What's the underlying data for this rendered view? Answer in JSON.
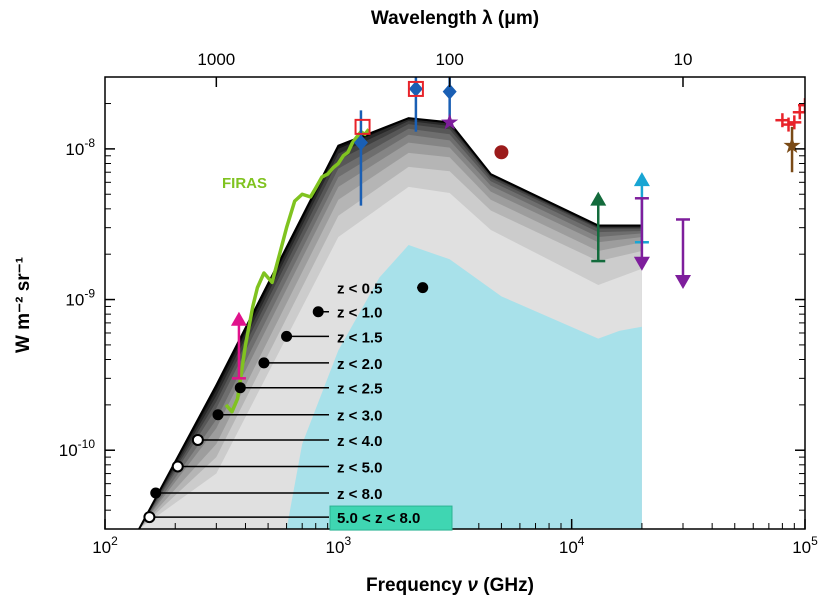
{
  "chart_data": {
    "type": "area",
    "title": "",
    "xlabel": "Frequency ν (GHz)",
    "xlabel_prefix": "Frequency ",
    "xlabel_symbol": "ν",
    "xlabel_suffix": " (GHz)",
    "ylabel": "W m⁻² sr⁻¹",
    "top_axis_label": "Wavelength λ (μm)",
    "xscale": "log",
    "yscale": "log",
    "xlim": [
      100,
      100000
    ],
    "ylim": [
      3e-11,
      3e-08
    ],
    "x_ticks": [
      {
        "value": 100,
        "base": "10",
        "exp": "2"
      },
      {
        "value": 1000,
        "base": "10",
        "exp": "3"
      },
      {
        "value": 10000,
        "base": "10",
        "exp": "4"
      },
      {
        "value": 100000,
        "base": "10",
        "exp": "5"
      }
    ],
    "y_ticks": [
      {
        "value": 1e-10,
        "base": "10",
        "exp": "-10"
      },
      {
        "value": 1e-09,
        "base": "10",
        "exp": "-9"
      },
      {
        "value": 1e-08,
        "base": "10",
        "exp": "-8"
      }
    ],
    "top_ticks": [
      {
        "label": "1000",
        "freq_ghz": 300
      },
      {
        "label": "100",
        "freq_ghz": 3000
      },
      {
        "label": "10",
        "freq_ghz": 30000
      }
    ],
    "envelope_x": [
      140,
      300,
      1000,
      2000,
      3000,
      4500,
      13000,
      20000
    ],
    "redshift_bins": [
      {
        "label": "z < 0.5",
        "color": "#e0e0e0",
        "marker_x": 2300,
        "marker_y": 1.2e-09,
        "filled": true,
        "y": [
          3e-11,
          7e-11,
          2.6e-09,
          5.6e-09,
          5.1e-09,
          2.9e-09,
          1.25e-09,
          1.6e-09
        ]
      },
      {
        "label": "z < 1.0",
        "color": "#cccccc",
        "marker_x": 820,
        "marker_y": 8.3e-10,
        "filled": true,
        "y": [
          3e-11,
          9e-11,
          3.6e-09,
          7.6e-09,
          7.1e-09,
          3.9e-09,
          1.8e-09,
          2.1e-09
        ]
      },
      {
        "label": "z < 1.5",
        "color": "#b5b5b5",
        "marker_x": 600,
        "marker_y": 5.7e-10,
        "filled": true,
        "y": [
          3e-11,
          1.1e-10,
          4.6e-09,
          9.4e-09,
          8.8e-09,
          4.6e-09,
          2.1e-09,
          2.4e-09
        ]
      },
      {
        "label": "z < 2.0",
        "color": "#9d9d9d",
        "marker_x": 480,
        "marker_y": 3.8e-10,
        "filled": true,
        "y": [
          3e-11,
          1.4e-10,
          5.6e-09,
          1.1e-08,
          1.02e-08,
          5.2e-09,
          2.4e-09,
          2.6e-09
        ]
      },
      {
        "label": "z < 2.5",
        "color": "#858585",
        "marker_x": 380,
        "marker_y": 2.6e-10,
        "filled": true,
        "y": [
          3e-11,
          1.6e-10,
          6.5e-09,
          1.24e-08,
          1.14e-08,
          5.7e-09,
          2.6e-09,
          2.75e-09
        ]
      },
      {
        "label": "z < 3.0",
        "color": "#6e6e6e",
        "marker_x": 305,
        "marker_y": 1.72e-10,
        "filled": true,
        "y": [
          3e-11,
          1.9e-10,
          7.4e-09,
          1.36e-08,
          1.25e-08,
          6.1e-09,
          2.8e-09,
          2.85e-09
        ]
      },
      {
        "label": "z < 4.0",
        "color": "#575757",
        "marker_x": 250,
        "marker_y": 1.17e-10,
        "filled": false,
        "y": [
          3e-11,
          2.1e-10,
          8.4e-09,
          1.46e-08,
          1.35e-08,
          6.4e-09,
          2.95e-09,
          2.95e-09
        ]
      },
      {
        "label": "z < 5.0",
        "color": "#404040",
        "marker_x": 205,
        "marker_y": 7.8e-11,
        "filled": false,
        "y": [
          3e-11,
          2.3e-10,
          9.3e-09,
          1.53e-08,
          1.42e-08,
          6.6e-09,
          3e-09,
          3e-09
        ]
      },
      {
        "label": "z < 8.0",
        "color": "#282828",
        "marker_x": 165,
        "marker_y": 5.2e-11,
        "filled": true,
        "y": [
          3e-11,
          2.5e-10,
          1e-08,
          1.58e-08,
          1.47e-08,
          6.7e-09,
          3.05e-09,
          3.05e-09
        ]
      },
      {
        "label": "5.0 < z < 8.0",
        "color": "#101010",
        "marker_x": 155,
        "marker_y": 3.6e-11,
        "filled": false,
        "highlight": "#3fd6b2",
        "y": [
          3e-11,
          2.7e-10,
          1.05e-08,
          1.6e-08,
          1.5e-08,
          6.8e-09,
          3.1e-09,
          3.1e-09
        ]
      }
    ],
    "cyan_region": {
      "color": "#a8e1ea",
      "x": [
        600,
        700,
        1000,
        1500,
        2000,
        3000,
        5000,
        13000,
        16000,
        20000
      ],
      "y": [
        3e-11,
        1.1e-10,
        4.6e-10,
        1.4e-09,
        2.3e-09,
        1.85e-09,
        1.05e-09,
        5.5e-10,
        6.2e-10,
        6.6e-10
      ]
    },
    "firas": {
      "label": "FIRAS",
      "color": "#80c320",
      "x": [
        330,
        350,
        370,
        400,
        430,
        450,
        480,
        520,
        560,
        600,
        650,
        700,
        760,
        800,
        850,
        900,
        950,
        1000,
        1050,
        1100,
        1150,
        1200,
        1250,
        1300,
        1350
      ],
      "y": [
        2e-10,
        1.8e-10,
        2.2e-10,
        5e-10,
        9e-10,
        1.2e-09,
        1.5e-09,
        1.3e-09,
        2e-09,
        3e-09,
        4.5e-09,
        5e-09,
        4.8e-09,
        5.5e-09,
        6.5e-09,
        6.8e-09,
        7.5e-09,
        8e-09,
        9e-09,
        9.5e-09,
        1.1e-08,
        1.2e-08,
        1.3e-08,
        1.25e-08,
        1.35e-08
      ]
    },
    "measurements": [
      {
        "name": "magenta-lower-limit",
        "x": 375,
        "y": 3e-10,
        "y_top": 7.8e-10,
        "color": "#e0138c",
        "kind": "arrow-up"
      },
      {
        "name": "blue-diamond-1",
        "x": 1250,
        "y": 1.1e-08,
        "y_low": 4.2e-09,
        "y_high": 1.8e-08,
        "color": "#1a5fb4",
        "kind": "diamond"
      },
      {
        "name": "red-square-1",
        "x": 1270,
        "y": 1.4e-08,
        "color": "#e8232a",
        "kind": "open-square"
      },
      {
        "name": "blue-diamond-2",
        "x": 2150,
        "y": 2.5e-08,
        "y_low": 1.3e-08,
        "y_high": 3.2e-08,
        "color": "#1a5fb4",
        "kind": "diamond"
      },
      {
        "name": "red-square-2",
        "x": 2150,
        "y": 2.5e-08,
        "color": "#e8232a",
        "kind": "open-square"
      },
      {
        "name": "blue-diamond-3",
        "x": 3000,
        "y": 2.4e-08,
        "y_low": 1.5e-08,
        "y_high": 3.1e-08,
        "color": "#1a5fb4",
        "kind": "diamond"
      },
      {
        "name": "purple-star",
        "x": 3000,
        "y": 1.5e-08,
        "color": "#7e1e9c",
        "kind": "star"
      },
      {
        "name": "darkred-circle",
        "x": 5000,
        "y": 9.5e-09,
        "color": "#9b1b1b",
        "kind": "circle"
      },
      {
        "name": "darkgreen-lower-limit",
        "x": 13000,
        "y": 1.8e-09,
        "y_top": 4.9e-09,
        "color": "#136b3c",
        "kind": "arrow-up"
      },
      {
        "name": "cyan-lower-limit",
        "x": 20000,
        "y": 2.4e-09,
        "y_top": 6.6e-09,
        "color": "#18a5d3",
        "kind": "arrow-up"
      },
      {
        "name": "purple-upper-limit-1",
        "x": 20000,
        "y": 4.7e-09,
        "y_bottom": 1.65e-09,
        "color": "#7e1e9c",
        "kind": "arrow-down"
      },
      {
        "name": "purple-upper-limit-2",
        "x": 30000,
        "y": 3.4e-09,
        "y_bottom": 1.25e-09,
        "color": "#7e1e9c",
        "kind": "arrow-down"
      },
      {
        "name": "red-cross-1",
        "x": 80000,
        "y": 1.55e-08,
        "color": "#e8232a",
        "kind": "cross"
      },
      {
        "name": "red-cross-2",
        "x": 85000,
        "y": 1.45e-08,
        "color": "#e8232a",
        "kind": "cross"
      },
      {
        "name": "red-cross-3",
        "x": 90000,
        "y": 1.5e-08,
        "color": "#e8232a",
        "kind": "cross"
      },
      {
        "name": "red-cross-4",
        "x": 95000,
        "y": 1.75e-08,
        "color": "#e8232a",
        "kind": "cross"
      },
      {
        "name": "red-cross-5",
        "x": 100000,
        "y": 1.95e-08,
        "color": "#e8232a",
        "kind": "cross"
      },
      {
        "name": "brown-star",
        "x": 88000,
        "y": 1.05e-08,
        "y_low": 7e-09,
        "y_high": 1.4e-08,
        "color": "#7a4a16",
        "kind": "star"
      }
    ]
  }
}
